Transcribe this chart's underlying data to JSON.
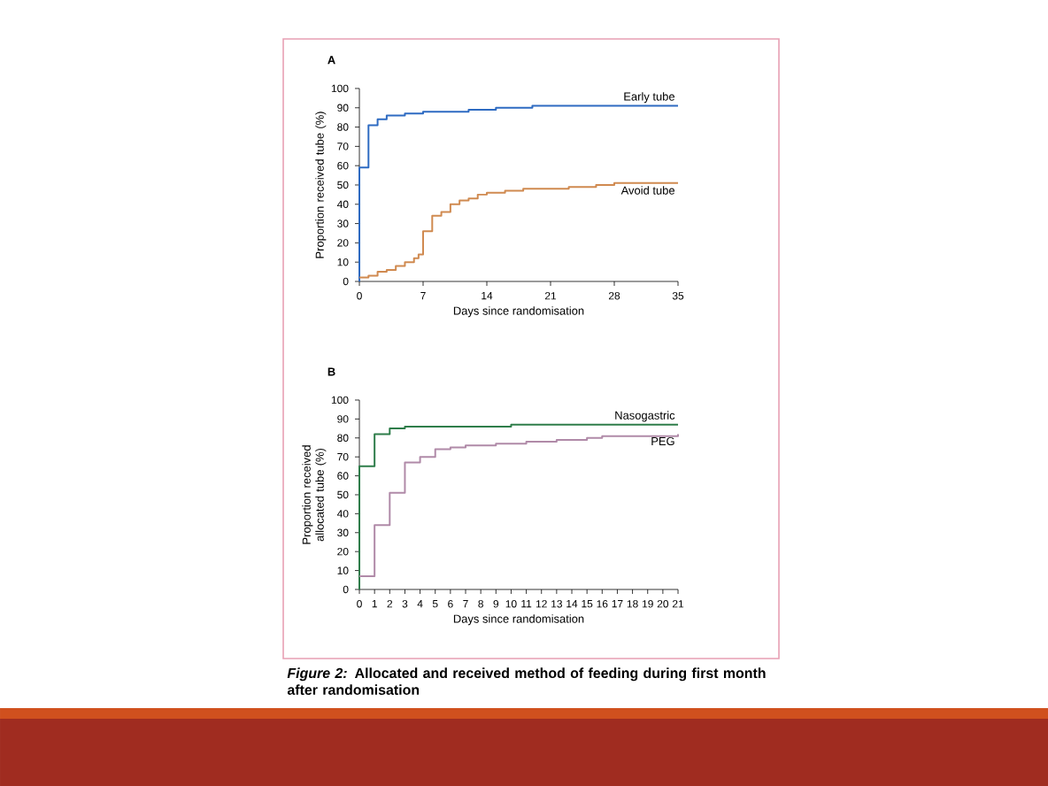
{
  "chart_data": [
    {
      "type": "step",
      "title": "A",
      "xlabel": "Days since randomisation",
      "ylabel": "Proportion received tube (%)",
      "xlim": [
        0,
        35
      ],
      "ylim": [
        0,
        100
      ],
      "xticks": [
        0,
        7,
        14,
        21,
        28,
        35
      ],
      "yticks": [
        0,
        10,
        20,
        30,
        40,
        50,
        60,
        70,
        80,
        90,
        100
      ],
      "series": [
        {
          "name": "Early tube",
          "color": "#2e6bc2",
          "x": [
            0,
            0,
            1,
            2,
            3,
            5,
            7,
            12,
            15,
            19,
            35
          ],
          "values": [
            0,
            59,
            81,
            84,
            86,
            87,
            88,
            89,
            90,
            91,
            91
          ]
        },
        {
          "name": "Avoid tube",
          "color": "#d08a50",
          "x": [
            0,
            1,
            2,
            3,
            4,
            5,
            6,
            6.5,
            7,
            8,
            9,
            10,
            11,
            12,
            13,
            14,
            16,
            18,
            23,
            26,
            28,
            35
          ],
          "values": [
            2,
            3,
            5,
            6,
            8,
            10,
            12,
            14,
            26,
            34,
            36,
            40,
            42,
            43,
            45,
            46,
            47,
            48,
            49,
            50,
            51,
            51
          ]
        }
      ]
    },
    {
      "type": "step",
      "title": "B",
      "xlabel": "Days since randomisation",
      "ylabel": "Proportion received allocated tube (%)",
      "xlim": [
        0,
        21
      ],
      "ylim": [
        0,
        100
      ],
      "xticks": [
        0,
        1,
        2,
        3,
        4,
        5,
        6,
        7,
        8,
        9,
        10,
        11,
        12,
        13,
        14,
        15,
        16,
        17,
        18,
        19,
        20,
        21
      ],
      "yticks": [
        0,
        10,
        20,
        30,
        40,
        50,
        60,
        70,
        80,
        90,
        100
      ],
      "annotations": [
        "*Figure 2:* Allocated and received method of feeding during first month after randomisation"
      ],
      "series": [
        {
          "name": "Nasogastric",
          "color": "#2e7d4a",
          "x": [
            0,
            0,
            1,
            2,
            3,
            10,
            21
          ],
          "values": [
            0,
            65,
            82,
            85,
            86,
            87,
            87
          ]
        },
        {
          "name": "PEG",
          "color": "#b08aa8",
          "x": [
            0,
            1,
            2,
            3,
            4,
            5,
            6,
            7,
            9,
            11,
            13,
            15,
            16,
            21
          ],
          "values": [
            7,
            34,
            51,
            67,
            70,
            74,
            75,
            76,
            77,
            78,
            79,
            80,
            81,
            82
          ]
        }
      ]
    }
  ]
}
